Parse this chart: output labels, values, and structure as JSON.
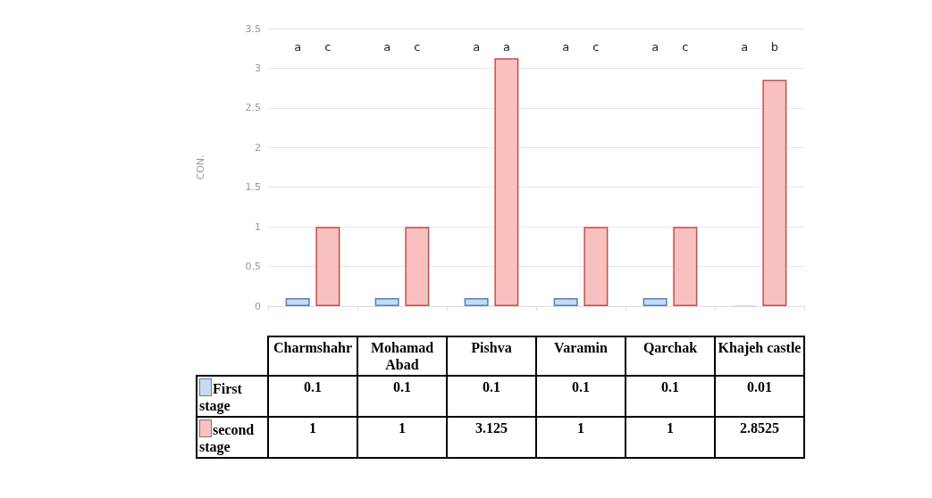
{
  "chart_data": {
    "type": "bar",
    "ylabel": "CON.",
    "categories": [
      "Charmshahr",
      "Mohamad Abad",
      "Pishva",
      "Varamin",
      "Qarchak",
      "Khajeh castle"
    ],
    "series": [
      {
        "name": "First stage",
        "color": "#c6dbf3",
        "values": [
          0.1,
          0.1,
          0.1,
          0.1,
          0.1,
          0.01
        ]
      },
      {
        "name": "second stage",
        "color": "#f9c0c0",
        "values": [
          1,
          1,
          3.125,
          1,
          1,
          2.8525
        ]
      }
    ],
    "ylim": [
      0,
      3.5
    ],
    "yticks": [
      0,
      0.5,
      1,
      1.5,
      2,
      2.5,
      3,
      3.5
    ],
    "grid": "y",
    "legend": "bottom left",
    "data_labels": true,
    "tick_labels": "y",
    "annotations": [
      "a",
      "c",
      "a",
      "c",
      "a",
      "a",
      "a",
      "c",
      "a",
      "c",
      "a",
      "b"
    ]
  }
}
